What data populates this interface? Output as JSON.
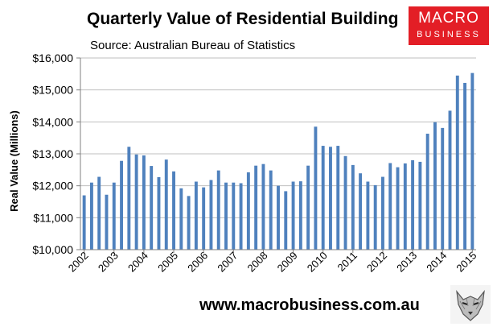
{
  "chart_data": {
    "type": "bar",
    "title": "Quarterly Value of Residential Building",
    "subtitle": "Source: Australian Bureau of Statistics",
    "ylabel": "Real Value (Millions)",
    "xlabel": "",
    "ylim": [
      10000,
      16000
    ],
    "yticks": [
      10000,
      11000,
      12000,
      13000,
      14000,
      15000,
      16000
    ],
    "ytick_labels": [
      "$10,000",
      "$11,000",
      "$12,000",
      "$13,000",
      "$14,000",
      "$15,000",
      "$16,000"
    ],
    "years": [
      "2002",
      "2003",
      "2004",
      "2005",
      "2006",
      "2007",
      "2008",
      "2009",
      "2010",
      "2011",
      "2012",
      "2013",
      "2014",
      "2015"
    ],
    "values": [
      11700,
      12100,
      12280,
      11720,
      12100,
      12780,
      13220,
      12980,
      12950,
      12620,
      12270,
      12820,
      12450,
      11920,
      11680,
      12130,
      11950,
      12180,
      12480,
      12100,
      12100,
      12080,
      12420,
      12630,
      12680,
      12480,
      12000,
      11830,
      12130,
      12140,
      12630,
      13850,
      13250,
      13220,
      13250,
      12930,
      12650,
      12390,
      12130,
      12020,
      12280,
      12710,
      12580,
      12700,
      12800,
      12750,
      13630,
      13990,
      13810,
      14350,
      15450,
      15220,
      15530
    ],
    "bar_color": "#4f81bd"
  },
  "branding": {
    "logo_line1": "MACRO",
    "logo_line2": "BUSINESS",
    "logo_color": "#e31e26",
    "website": "www.macrobusiness.com.au",
    "mascot_icon": "wolf-icon"
  }
}
